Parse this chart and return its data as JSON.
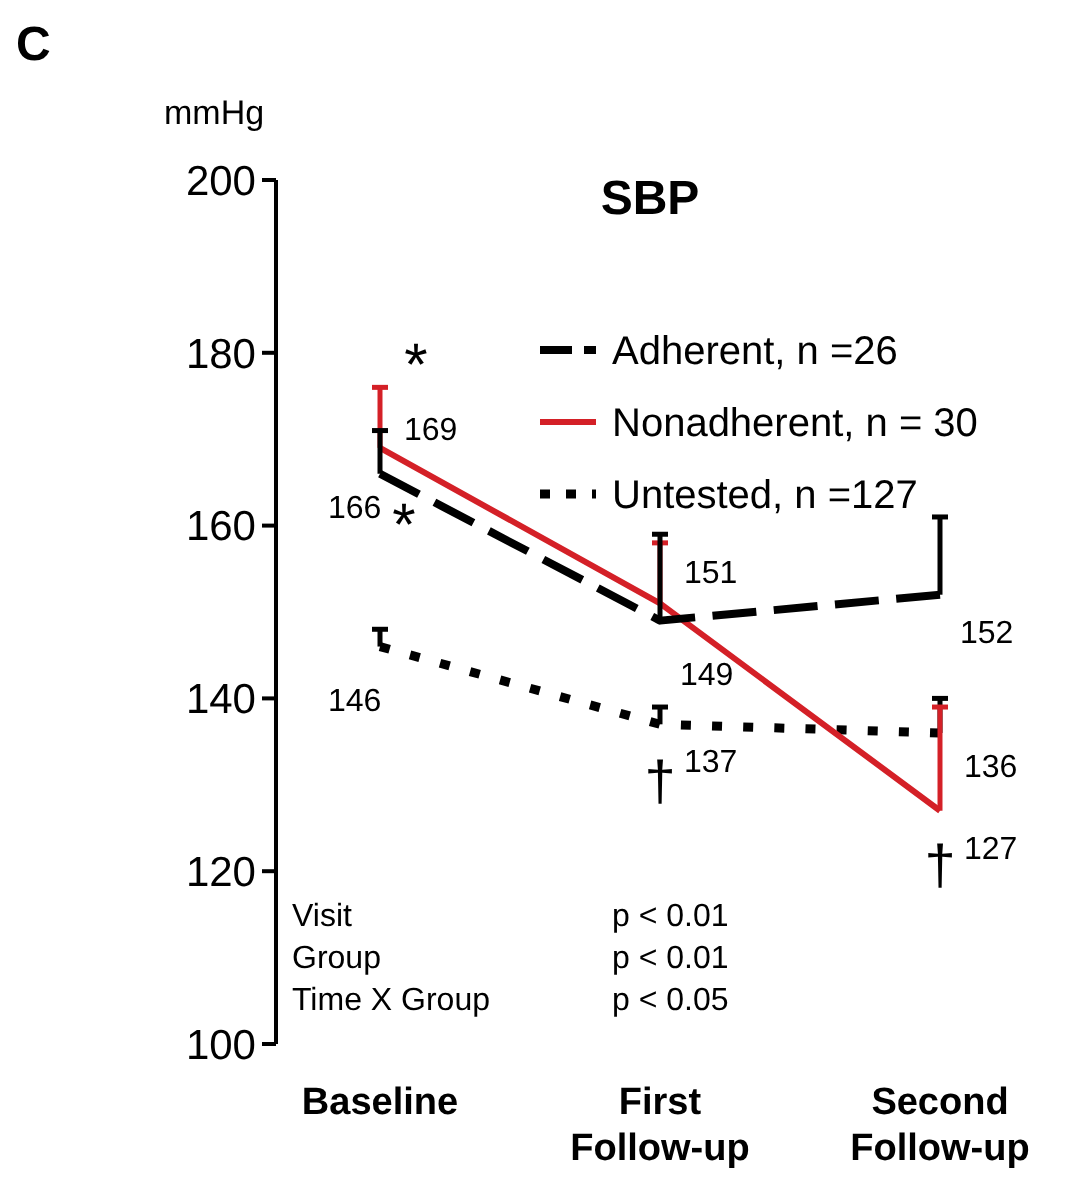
{
  "chart_data": {
    "type": "line",
    "title": "SBP",
    "ylabel": "mmHg",
    "categories": [
      "Baseline",
      "First\nFollow-up",
      "Second\nFollow-up"
    ],
    "ylim": [
      100,
      200
    ],
    "yticks": [
      100,
      120,
      140,
      160,
      180,
      200
    ],
    "series": [
      {
        "name": "Adherent, n =26",
        "color": "#000000",
        "line_style": "dashed",
        "values": [
          166,
          149,
          152
        ],
        "errors": [
          [
            166,
            171
          ],
          [
            149,
            159
          ],
          [
            152,
            161
          ]
        ]
      },
      {
        "name": "Nonadherent, n = 30",
        "color": "#d42027",
        "line_style": "solid",
        "values": [
          169,
          151,
          127
        ],
        "errors": [
          [
            169,
            176
          ],
          [
            151,
            158
          ],
          [
            127,
            139
          ]
        ]
      },
      {
        "name": "Untested, n =127",
        "color": "#000000",
        "line_style": "dotted",
        "values": [
          146,
          137,
          136
        ],
        "errors": [
          [
            146,
            148
          ],
          [
            137,
            139
          ],
          [
            136,
            140
          ]
        ]
      }
    ],
    "data_labels": true,
    "legend": "top right",
    "marker": "none",
    "grid": false,
    "annotations": [
      "C",
      "*",
      "*",
      "†",
      "†",
      "Visit",
      "p < 0.01",
      "Group",
      "p < 0.01",
      "Time X Group",
      "p < 0.05"
    ]
  }
}
